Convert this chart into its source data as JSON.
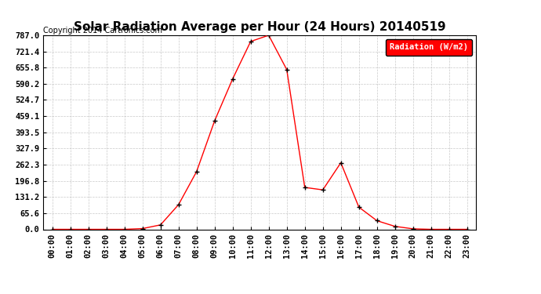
{
  "title": "Solar Radiation Average per Hour (24 Hours) 20140519",
  "copyright": "Copyright 2014 Cartronics.com",
  "legend_label": "Radiation (W/m2)",
  "hours": [
    "00:00",
    "01:00",
    "02:00",
    "03:00",
    "04:00",
    "05:00",
    "06:00",
    "07:00",
    "08:00",
    "09:00",
    "10:00",
    "11:00",
    "12:00",
    "13:00",
    "14:00",
    "15:00",
    "16:00",
    "17:00",
    "18:00",
    "19:00",
    "20:00",
    "21:00",
    "22:00",
    "23:00"
  ],
  "values": [
    0.0,
    0.0,
    0.0,
    0.0,
    0.0,
    3.0,
    18.0,
    100.0,
    234.0,
    440.0,
    610.0,
    762.0,
    787.0,
    648.0,
    170.0,
    160.0,
    270.0,
    90.0,
    35.0,
    12.0,
    2.0,
    0.0,
    0.0,
    0.0
  ],
  "yticks": [
    0.0,
    65.6,
    131.2,
    196.8,
    262.3,
    327.9,
    393.5,
    459.1,
    524.7,
    590.2,
    655.8,
    721.4,
    787.0
  ],
  "ymax": 787.0,
  "line_color": "#FF0000",
  "marker": "+",
  "marker_color": "#000000",
  "bg_color": "#FFFFFF",
  "grid_color": "#BBBBBB",
  "legend_bg": "#FF0000",
  "legend_text_color": "#FFFFFF",
  "title_fontsize": 11,
  "copyright_fontsize": 7,
  "tick_fontsize": 7.5
}
